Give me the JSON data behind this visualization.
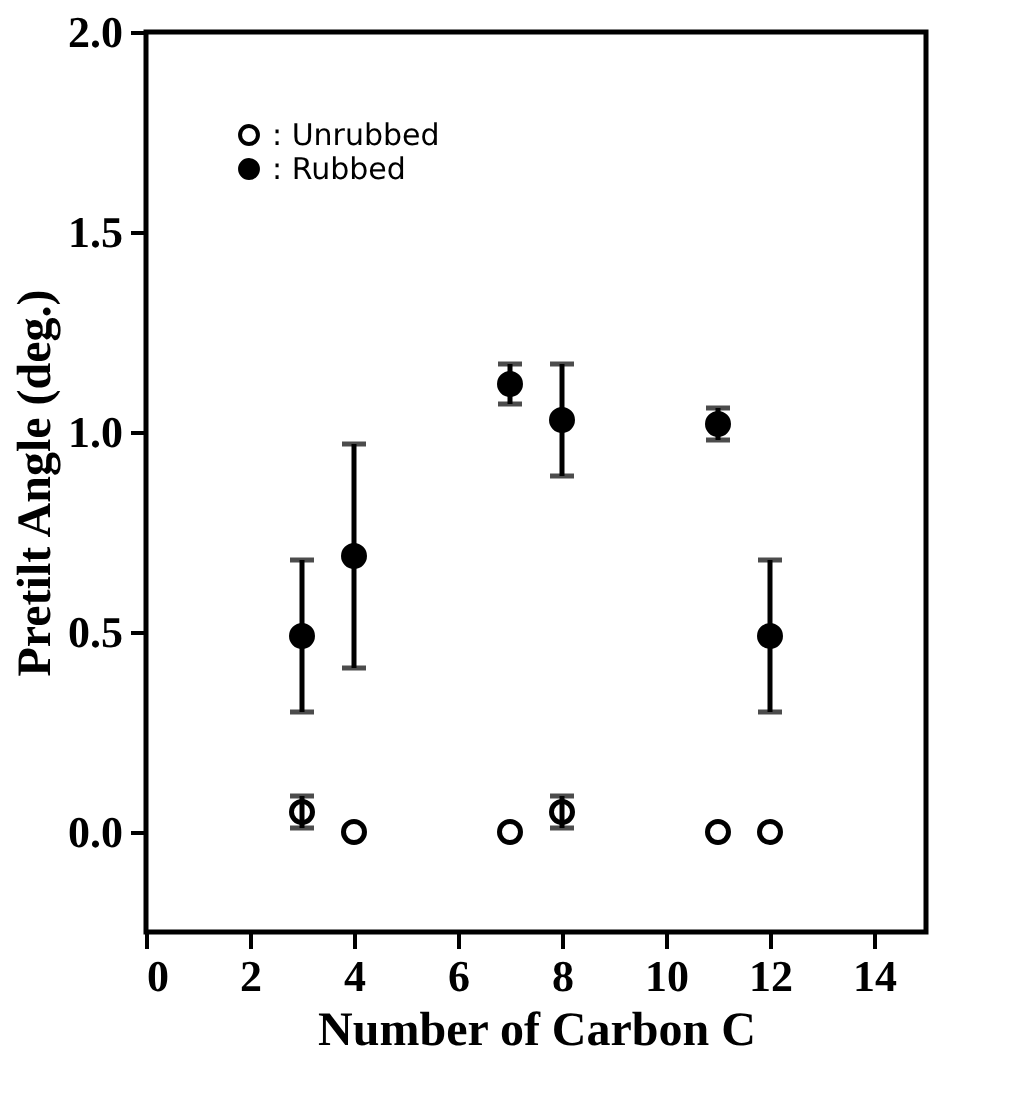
{
  "chart_data": {
    "type": "scatter",
    "xlabel": "Number of Carbon C",
    "ylabel": "Pretilt Angle (deg.)",
    "xlim": [
      0,
      15
    ],
    "xticks": [
      0,
      2,
      4,
      6,
      8,
      10,
      12,
      14
    ],
    "ylim": [
      -0.25,
      2.0
    ],
    "yticks": [
      {
        "value": 0,
        "label": "0.0"
      },
      {
        "value": 0.5,
        "label": "0.5"
      },
      {
        "value": 1,
        "label": "1.0"
      },
      {
        "value": 1.5,
        "label": "1.5"
      },
      {
        "value": 2,
        "label": "2.0"
      }
    ],
    "marker": "circle",
    "grid": false,
    "legend": "top left",
    "series": [
      {
        "name": ": Unrubbed",
        "color": "#000000",
        "x": [
          3,
          4,
          7,
          8,
          11,
          12
        ],
        "values": [
          0.05,
          0,
          0,
          0.05,
          0,
          0
        ],
        "errors": [
          0.04,
          null,
          null,
          0.04,
          null,
          null
        ]
      },
      {
        "name": ": Rubbed",
        "color": "#000000",
        "x": [
          3,
          4,
          7,
          8,
          11,
          12
        ],
        "values": [
          0.49,
          0.69,
          1.12,
          1.03,
          1.02,
          0.49
        ],
        "errors": [
          0.19,
          0.28,
          0.05,
          0.14,
          0.04,
          0.19
        ]
      }
    ]
  }
}
